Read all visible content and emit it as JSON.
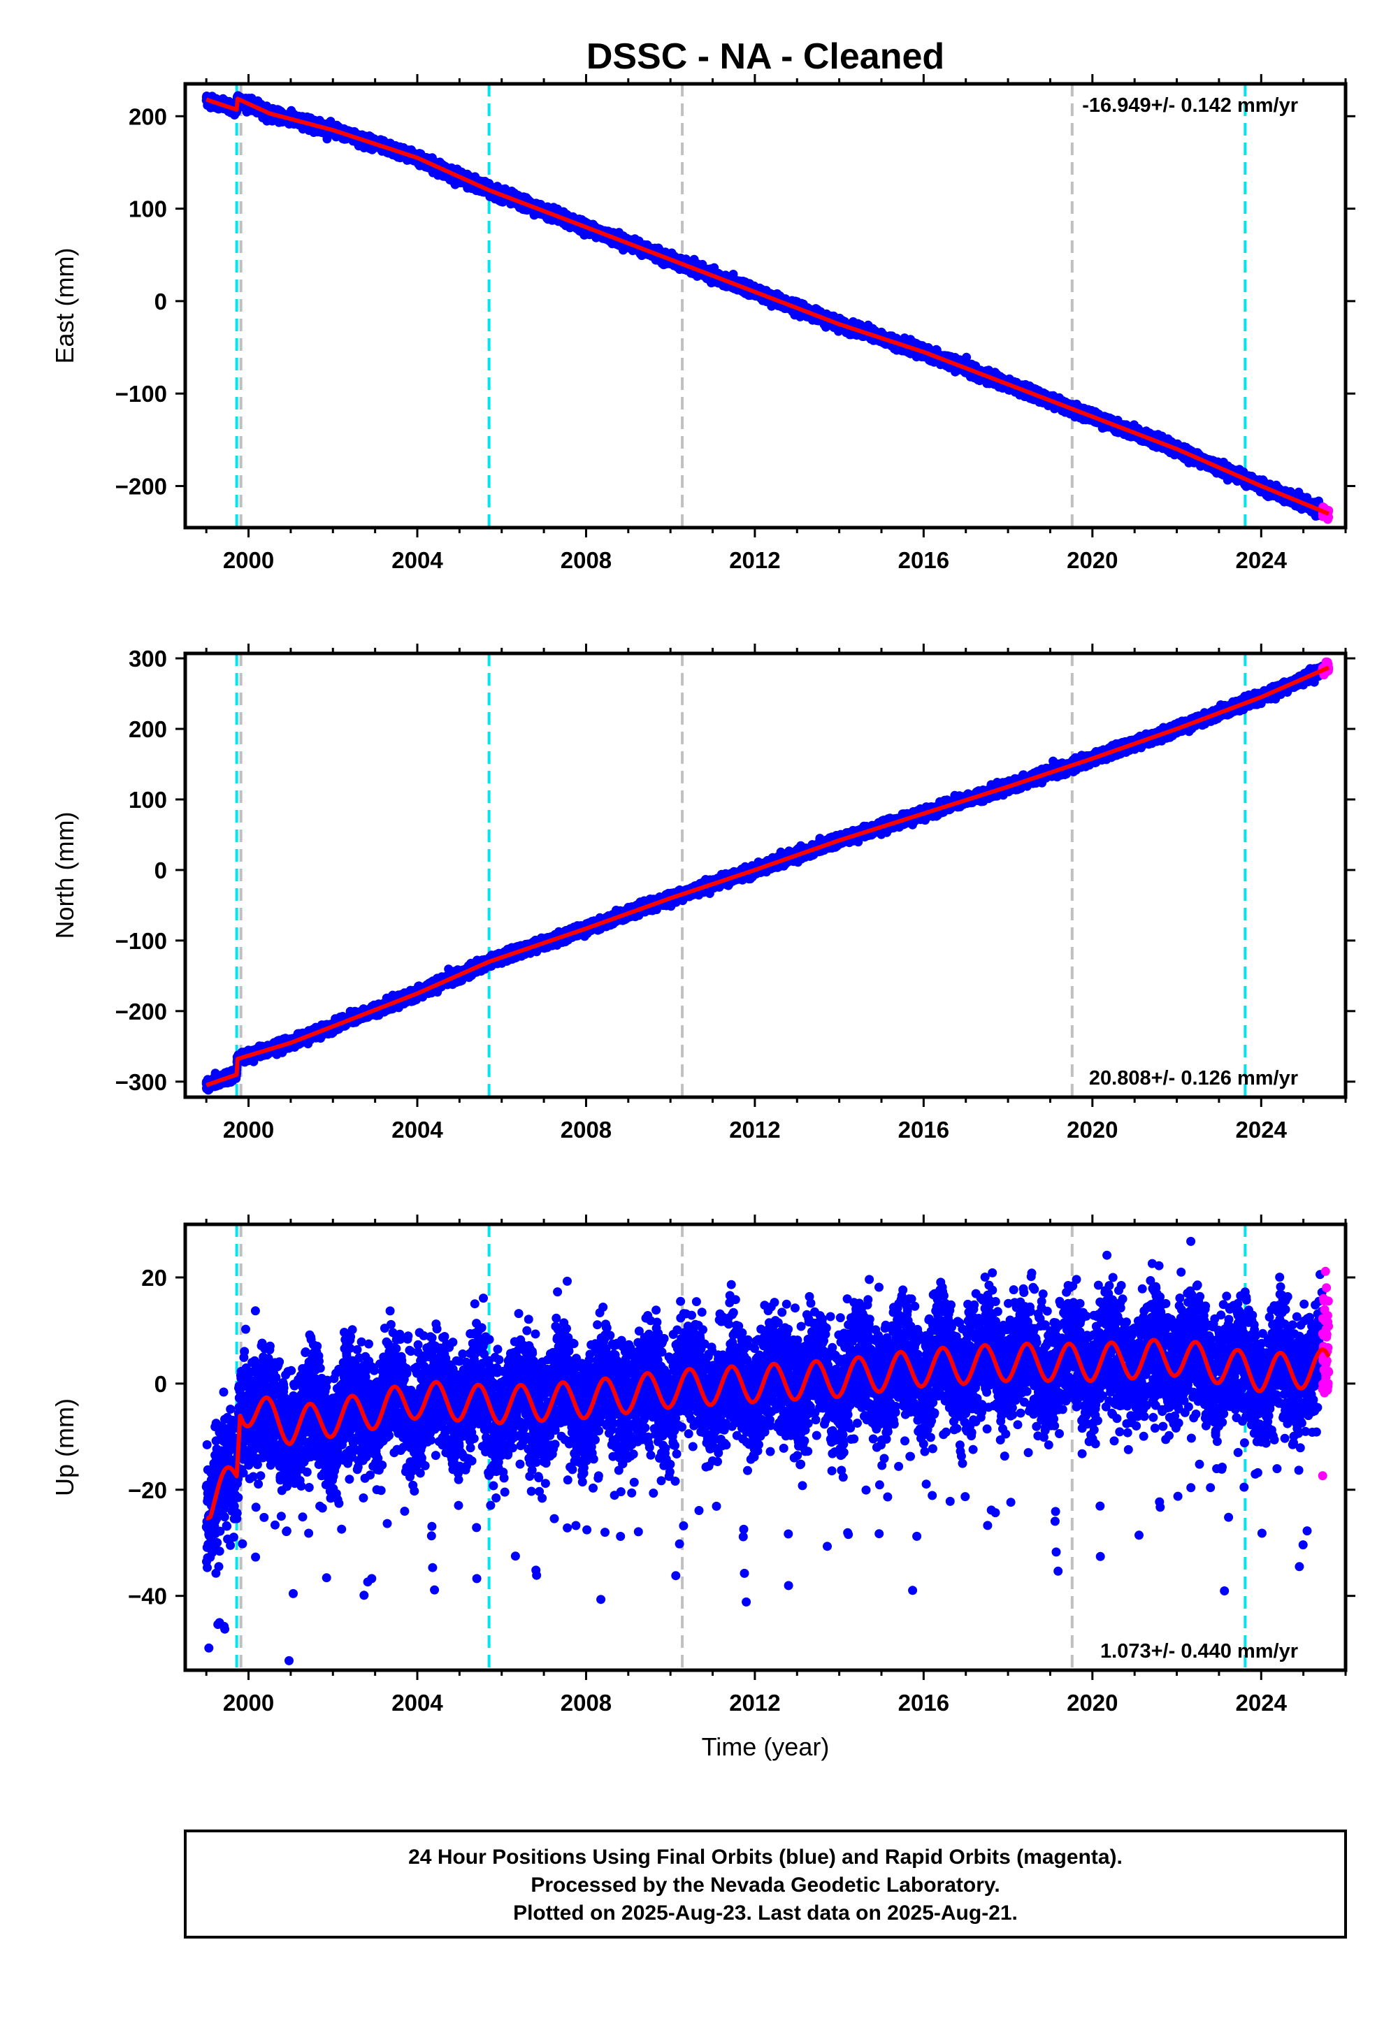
{
  "chart_data": {
    "title": "DSSC  - NA - Cleaned",
    "xlabel": "Time (year)",
    "x_ticks": [
      2000,
      2004,
      2008,
      2012,
      2016,
      2020,
      2024
    ],
    "x_tick_labels": [
      "2000",
      "2004",
      "2008",
      "2012",
      "2016",
      "2020",
      "2024"
    ],
    "xlim": [
      1998.5,
      2026.0
    ],
    "colors": {
      "final_orbits": "#0000ff",
      "rapid_orbits": "#ff00ff",
      "model": "#ff0000",
      "equipment_change": "#00e5ee",
      "other_event": "#c0c0c0"
    },
    "event_lines": [
      {
        "x": 1999.72,
        "kind": "equipment_change"
      },
      {
        "x": 1999.82,
        "kind": "other_event"
      },
      {
        "x": 2005.7,
        "kind": "equipment_change"
      },
      {
        "x": 2010.28,
        "kind": "other_event"
      },
      {
        "x": 2019.52,
        "kind": "other_event"
      },
      {
        "x": 2023.62,
        "kind": "equipment_change"
      }
    ],
    "panels": [
      {
        "type": "scatter",
        "id": "east",
        "ylabel": "East (mm)",
        "ylim": [
          -245,
          235
        ],
        "y_ticks": [
          -200,
          -100,
          0,
          100,
          200
        ],
        "y_tick_labels": [
          "−200",
          "−100",
          "0",
          "100",
          "200"
        ],
        "rate_label": "-16.949+/- 0.142 mm/yr",
        "rate_position": "top-right",
        "series_model": {
          "name": "model",
          "x": [
            1999.0,
            1999.72,
            1999.73,
            2000.5,
            2002,
            2004,
            2005.7,
            2008,
            2010,
            2012,
            2014,
            2016,
            2018,
            2020,
            2022,
            2024,
            2025.6
          ],
          "y": [
            218,
            207,
            219,
            203,
            185,
            155,
            120,
            80,
            45,
            10,
            -25,
            -55,
            -90,
            -125,
            -160,
            -200,
            -230
          ]
        },
        "noise_mm": 2.8,
        "rapid_from_year": 2025.45
      },
      {
        "type": "scatter",
        "id": "north",
        "ylabel": "North (mm)",
        "ylim": [
          -322,
          307
        ],
        "y_ticks": [
          -300,
          -200,
          -100,
          0,
          100,
          200,
          300
        ],
        "y_tick_labels": [
          "−300",
          "−200",
          "−100",
          "0",
          "100",
          "200",
          "300"
        ],
        "rate_label": "20.808+/- 0.126 mm/yr",
        "rate_position": "bottom-right",
        "series_model": {
          "name": "model",
          "x": [
            1999.0,
            1999.72,
            1999.73,
            2001,
            2004,
            2005.7,
            2008,
            2010,
            2012,
            2014,
            2016,
            2018,
            2020,
            2022,
            2024,
            2025.6
          ],
          "y": [
            -305,
            -290,
            -268,
            -245,
            -175,
            -130,
            -83,
            -40,
            0,
            42,
            80,
            118,
            158,
            200,
            245,
            287
          ]
        },
        "noise_mm": 3.5,
        "rapid_from_year": 2025.45
      },
      {
        "type": "scatter",
        "id": "up",
        "ylabel": "Up (mm)",
        "ylim": [
          -54,
          30
        ],
        "y_ticks": [
          -40,
          -20,
          0,
          20
        ],
        "y_tick_labels": [
          "−40",
          "−20",
          "0",
          "20"
        ],
        "rate_label": "1.073+/- 0.440 mm/yr",
        "rate_position": "bottom-right",
        "series_model": {
          "name": "model",
          "x": [
            1999.0,
            1999.1,
            1999.72,
            1999.8,
            2001,
            2003,
            2004,
            2006,
            2008,
            2010,
            2012,
            2014,
            2016,
            2018,
            2020,
            2022,
            2024,
            2025.6
          ],
          "y": [
            -22,
            -23,
            -17,
            -4,
            -8,
            -5,
            -3,
            -4,
            -3,
            -1,
            0,
            1,
            3,
            4,
            4,
            5,
            2,
            3
          ]
        },
        "seasonal_amplitude_mm": 3.5,
        "noise_mm": 5.5,
        "rapid_from_year": 2025.45
      }
    ]
  },
  "footer": {
    "line1": "24 Hour Positions Using Final Orbits (blue) and Rapid Orbits (magenta).",
    "line2": "Processed by the Nevada Geodetic Laboratory.",
    "line3": "Plotted on 2025-Aug-23. Last data on 2025-Aug-21."
  }
}
